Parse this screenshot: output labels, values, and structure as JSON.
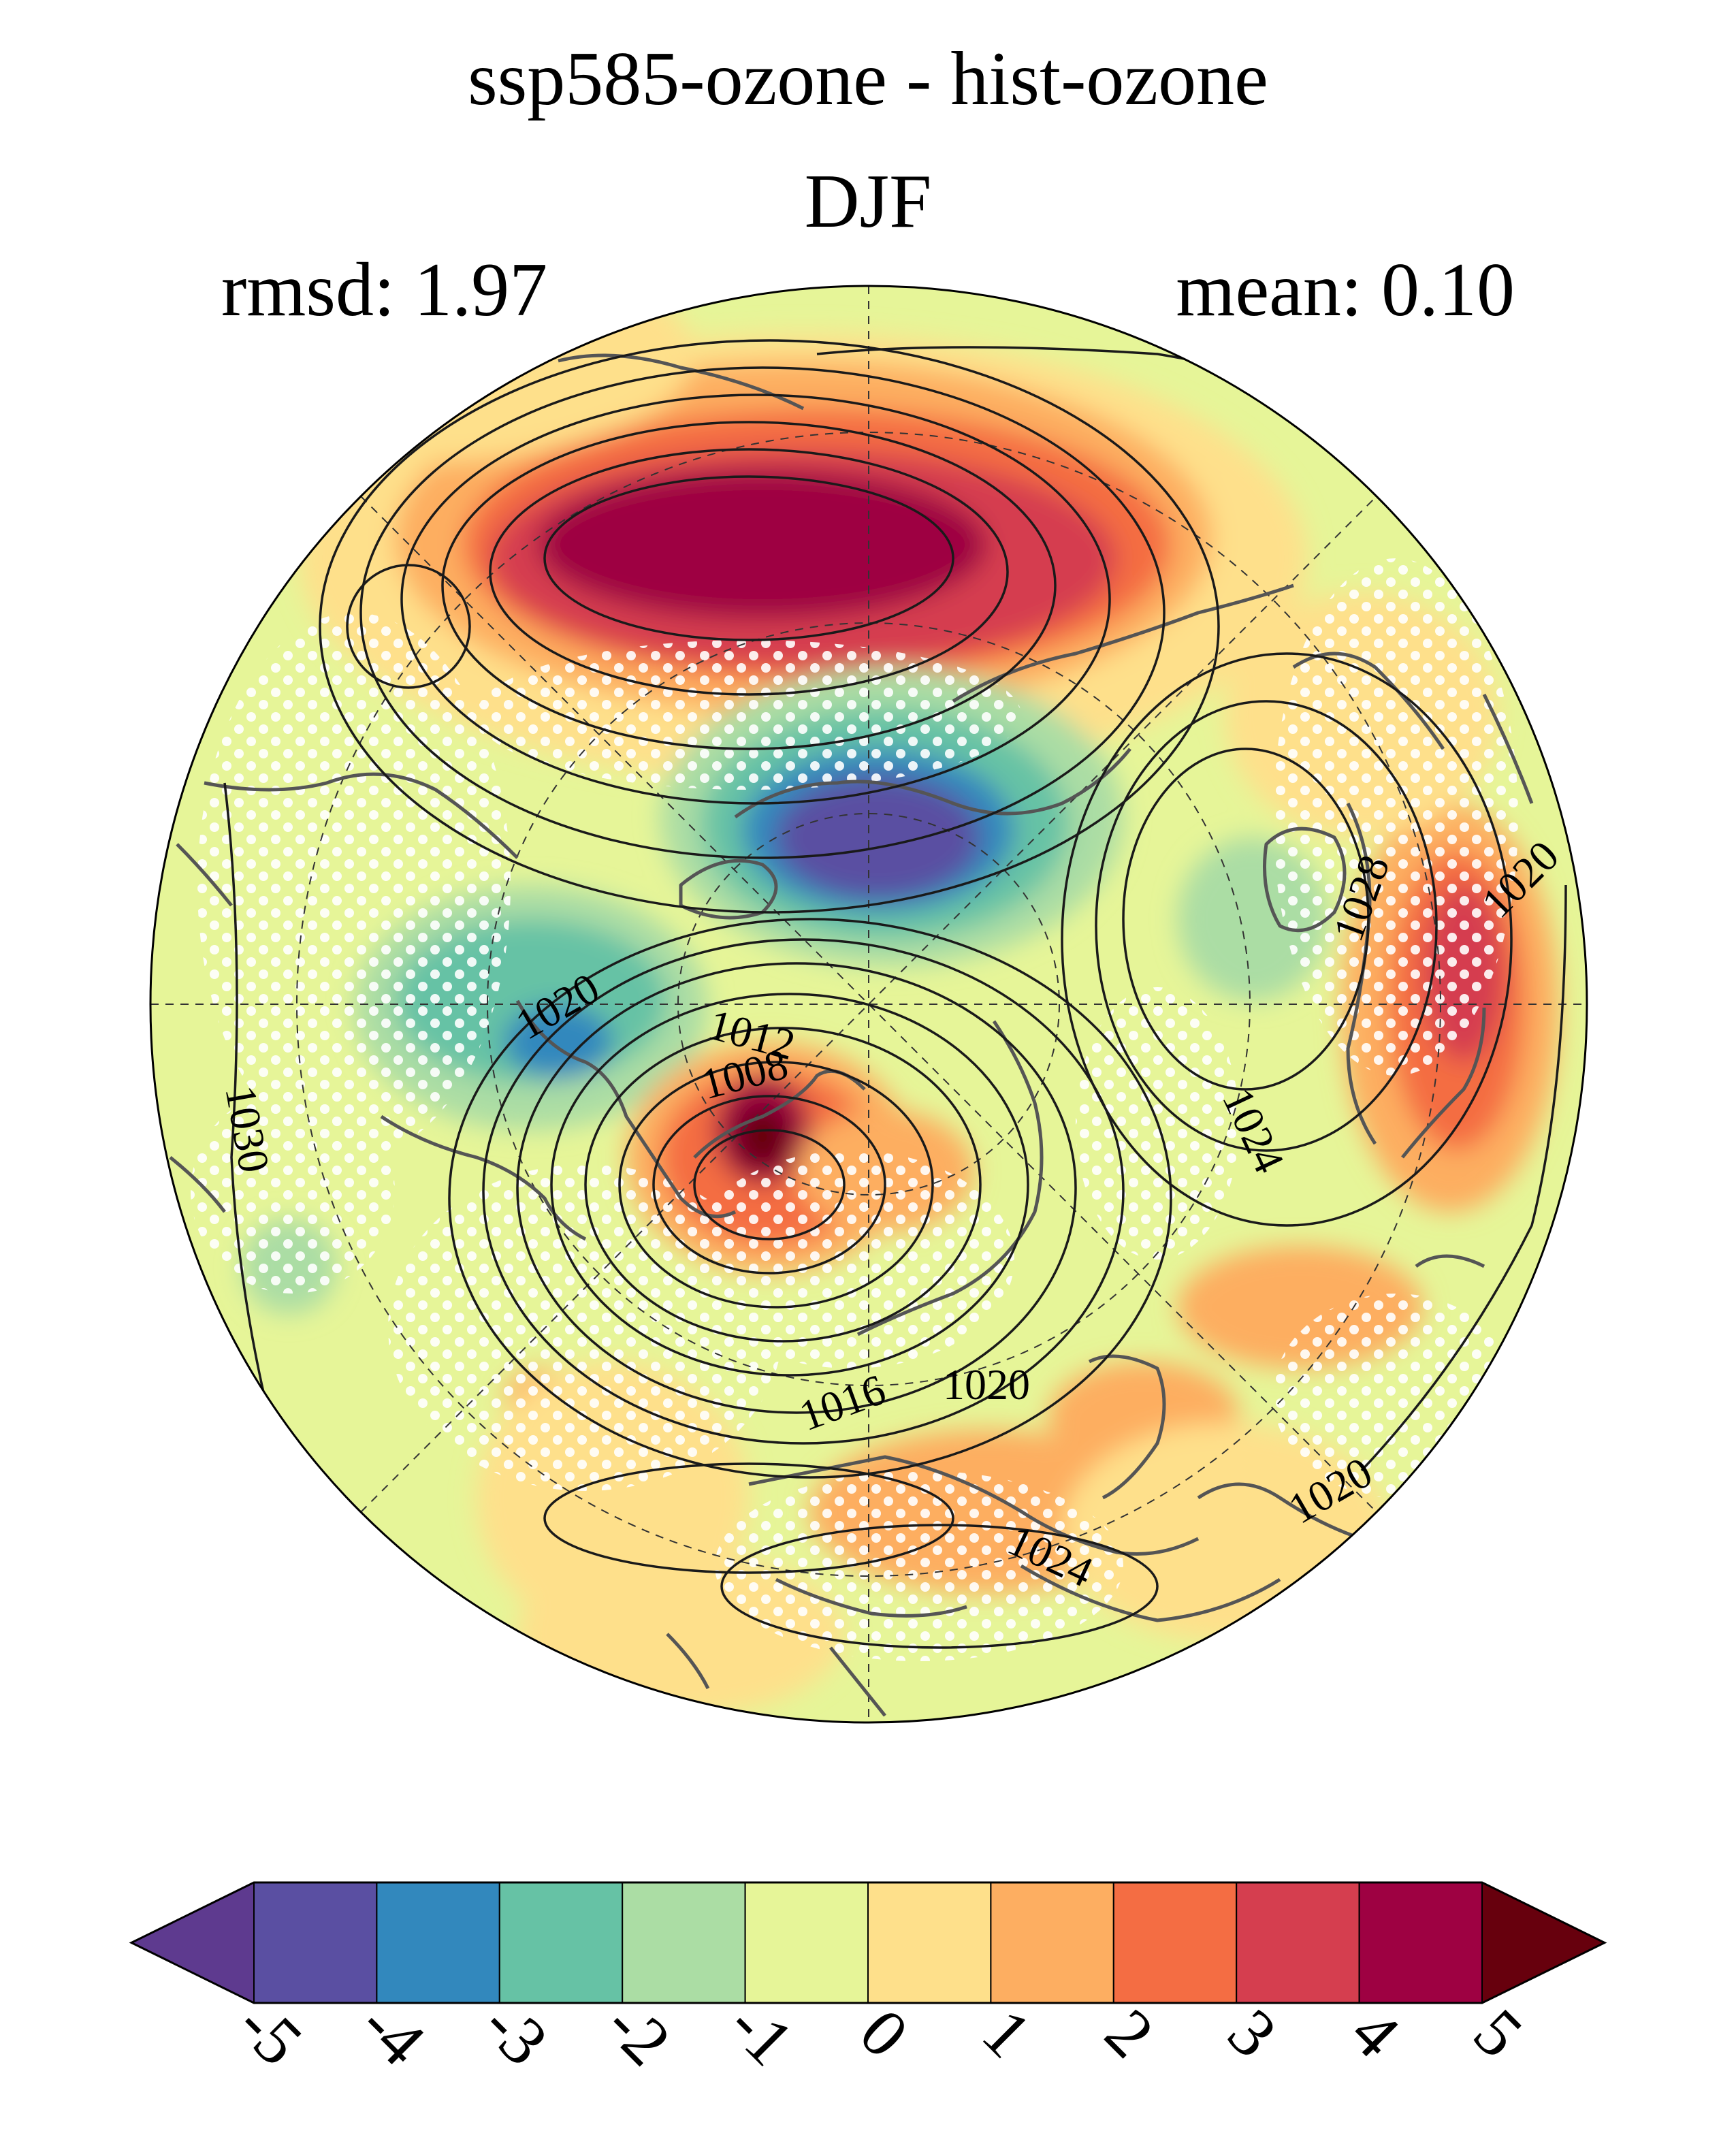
{
  "title": "ssp585-ozone - hist-ozone",
  "season": "DJF",
  "stats": {
    "rmsd": "rmsd: 1.97",
    "mean": "mean: 0.10"
  },
  "contour_labels": [
    "1020",
    "1030",
    "1012",
    "1008",
    "1016",
    "1020",
    "1024",
    "1028",
    "1020",
    "1024",
    "1020",
    "1024",
    "1020"
  ],
  "colorbar": {
    "ticks": [
      "-5",
      "-4",
      "-3",
      "-2",
      "-1",
      "0",
      "1",
      "2",
      "3",
      "4",
      "5"
    ],
    "colors": [
      "#5e3a8f",
      "#5a4fa2",
      "#3288bd",
      "#66c2a5",
      "#abdda4",
      "#e6f598",
      "#fee08b",
      "#fdae61",
      "#f46d43",
      "#d53e4f",
      "#9e0142",
      "#67000d"
    ]
  },
  "colors": {
    "background": "#ffffff",
    "coast": "#555555",
    "contour": "#1a1a1a",
    "stipple": "#ffffff"
  }
}
